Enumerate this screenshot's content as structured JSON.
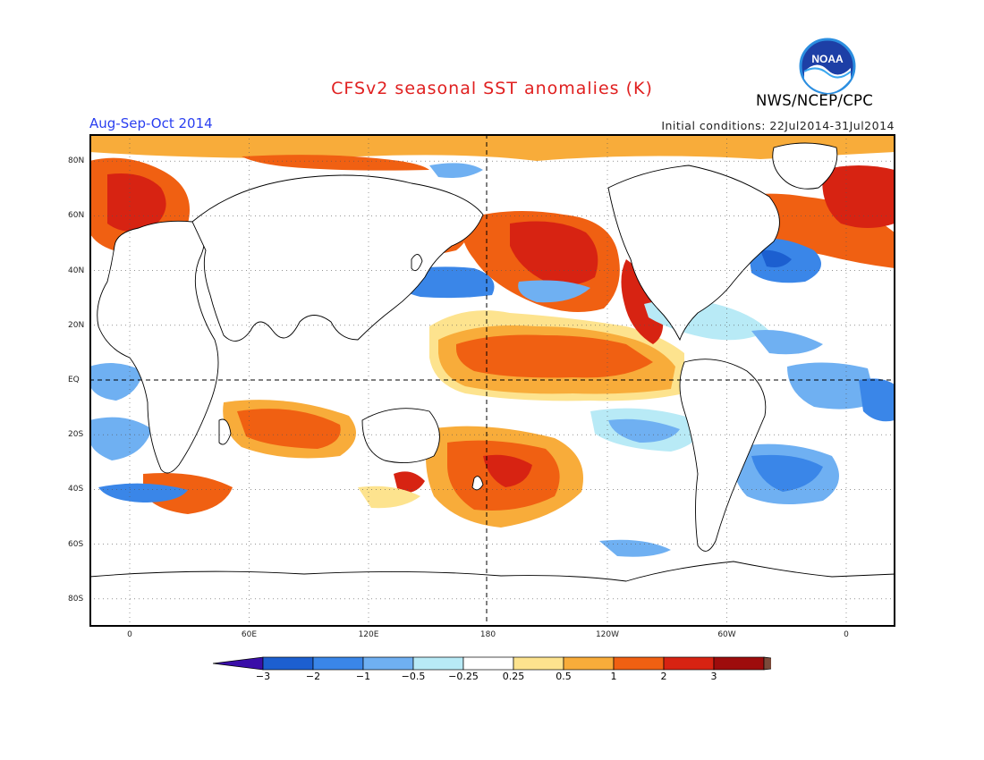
{
  "title": "CFSv2 seasonal SST anomalies (K)",
  "period": "Aug-Sep-Oct 2014",
  "initial_conditions": "Initial conditions: 22Jul2014-31Jul2014",
  "agency": "NWS/NCEP/CPC",
  "logo_text": "NOAA",
  "colors": {
    "title": "#e02020",
    "period": "#2a3ff0",
    "frame": "#000000",
    "land": "#ffffff",
    "palette": [
      "#3a0ea8",
      "#1c5fd0",
      "#3a86e8",
      "#6fb0f2",
      "#b8eaf6",
      "#ffffff",
      "#fde38e",
      "#f8ac3a",
      "#f06012",
      "#d72312",
      "#9e0c0c",
      "#7a4a3a"
    ]
  },
  "map": {
    "lat_labels": [
      "80N",
      "60N",
      "40N",
      "20N",
      "EQ",
      "20S",
      "40S",
      "60S",
      "80S"
    ],
    "lon_labels": [
      "0",
      "60E",
      "120E",
      "180",
      "120W",
      "60W",
      "0"
    ],
    "projection": "cylindrical equidistant, 20W–20E extended",
    "field": "sea surface temperature anomaly"
  },
  "colorbar": {
    "labels": [
      "−3",
      "−2",
      "−1",
      "−0.5",
      "−0.25",
      "0.25",
      "0.5",
      "1",
      "2",
      "3"
    ],
    "bins": [
      "<-3",
      "-3..-2",
      "-2..-1",
      "-1..-0.5",
      "-0.5..-0.25",
      "-0.25..0.25",
      "0.25..0.5",
      "0.5..1",
      "1..2",
      "2..3",
      ">3"
    ]
  }
}
